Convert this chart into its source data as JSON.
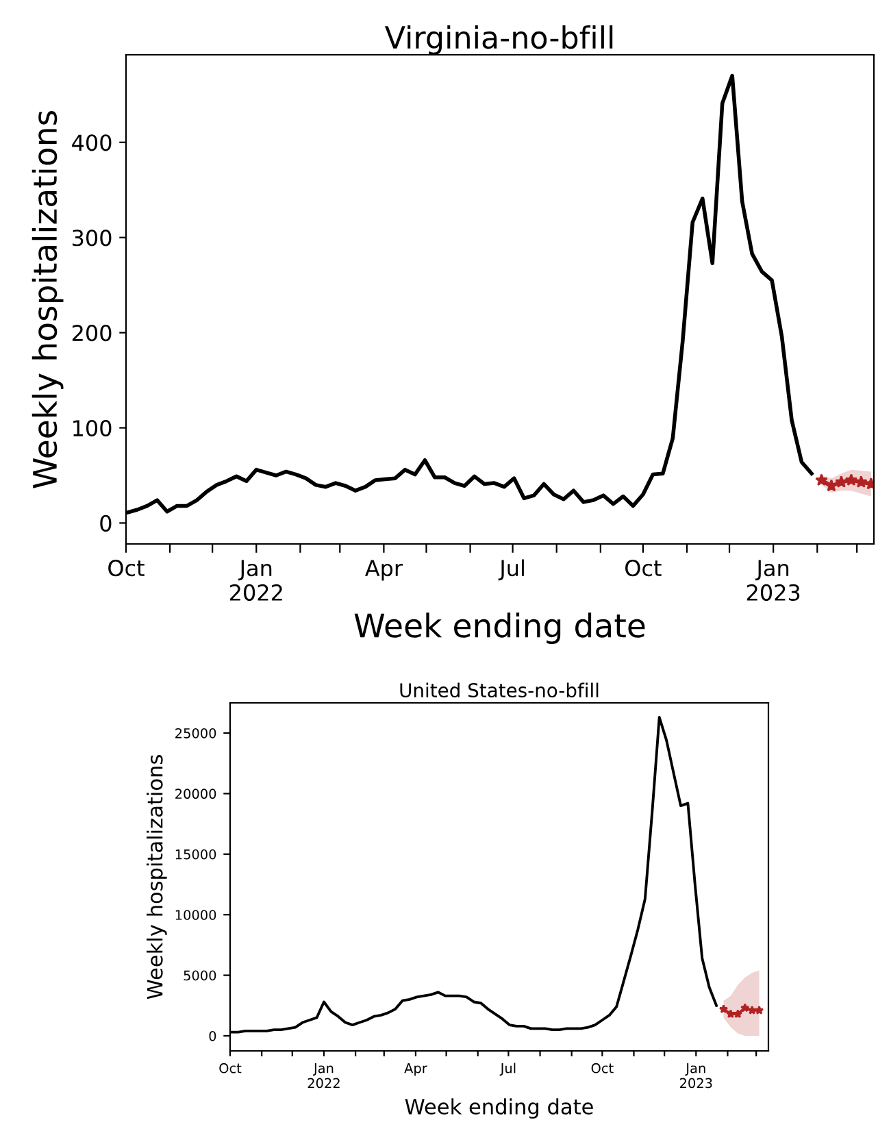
{
  "chart_data": [
    {
      "type": "line",
      "title": "Virginia-no-bfill",
      "xlabel": "Week ending date",
      "ylabel": "Weekly hospitalizations",
      "xlim": [
        "2021-10-01",
        "2023-03-13"
      ],
      "ylim": [
        -22,
        492
      ],
      "yticks": [
        0,
        100,
        200,
        300,
        400
      ],
      "xticks": [
        {
          "value": "2021-10-01",
          "label": "Oct"
        },
        {
          "value": "2021-11-01",
          "label": null
        },
        {
          "value": "2021-12-01",
          "label": null
        },
        {
          "value": "2022-01-01",
          "label": "Jan\n2022"
        },
        {
          "value": "2022-02-01",
          "label": null
        },
        {
          "value": "2022-03-01",
          "label": null
        },
        {
          "value": "2022-04-01",
          "label": "Apr"
        },
        {
          "value": "2022-05-01",
          "label": null
        },
        {
          "value": "2022-06-01",
          "label": null
        },
        {
          "value": "2022-07-01",
          "label": "Jul"
        },
        {
          "value": "2022-08-01",
          "label": null
        },
        {
          "value": "2022-09-01",
          "label": null
        },
        {
          "value": "2022-10-01",
          "label": "Oct"
        },
        {
          "value": "2022-11-01",
          "label": null
        },
        {
          "value": "2022-12-01",
          "label": null
        },
        {
          "value": "2023-01-01",
          "label": "Jan\n2023"
        },
        {
          "value": "2023-02-01",
          "label": null
        },
        {
          "value": "2023-03-01",
          "label": null
        }
      ],
      "grid": false,
      "series": [
        {
          "color": "#000000",
          "marker": "none",
          "x": [
            "2021-10-02",
            "2021-10-09",
            "2021-10-16",
            "2021-10-23",
            "2021-10-30",
            "2021-11-06",
            "2021-11-13",
            "2021-11-20",
            "2021-11-27",
            "2021-12-04",
            "2021-12-11",
            "2021-12-18",
            "2021-12-25",
            "2022-01-01",
            "2022-01-08",
            "2022-01-15",
            "2022-01-22",
            "2022-01-29",
            "2022-02-05",
            "2022-02-12",
            "2022-02-19",
            "2022-02-26",
            "2022-03-05",
            "2022-03-12",
            "2022-03-19",
            "2022-03-26",
            "2022-04-02",
            "2022-04-09",
            "2022-04-16",
            "2022-04-23",
            "2022-04-30",
            "2022-05-07",
            "2022-05-14",
            "2022-05-21",
            "2022-05-28",
            "2022-06-04",
            "2022-06-11",
            "2022-06-18",
            "2022-06-25",
            "2022-07-02",
            "2022-07-09",
            "2022-07-16",
            "2022-07-23",
            "2022-07-30",
            "2022-08-06",
            "2022-08-13",
            "2022-08-20",
            "2022-08-27",
            "2022-09-03",
            "2022-09-10",
            "2022-09-17",
            "2022-09-24",
            "2022-10-01",
            "2022-10-08",
            "2022-10-15",
            "2022-10-22",
            "2022-10-29",
            "2022-11-05",
            "2022-11-12",
            "2022-11-19",
            "2022-11-26",
            "2022-12-03",
            "2022-12-10",
            "2022-12-17",
            "2022-12-24",
            "2022-12-31",
            "2023-01-07",
            "2023-01-14",
            "2023-01-21",
            "2023-01-28"
          ],
          "values": [
            11,
            14,
            18,
            24,
            12,
            18,
            18,
            24,
            33,
            40,
            44,
            49,
            44,
            56,
            53,
            50,
            54,
            51,
            47,
            40,
            38,
            42,
            39,
            34,
            38,
            45,
            46,
            47,
            56,
            51,
            66,
            48,
            48,
            42,
            39,
            49,
            41,
            42,
            38,
            47,
            26,
            29,
            41,
            30,
            25,
            34,
            22,
            24,
            29,
            20,
            28,
            18,
            30,
            51,
            52,
            89,
            191,
            316,
            341,
            273,
            441,
            470,
            338,
            283,
            264,
            255,
            196,
            108,
            64,
            52
          ]
        },
        {
          "color": "#b22222",
          "marker": "star",
          "x": [
            "2023-02-04",
            "2023-02-11",
            "2023-02-18",
            "2023-02-25",
            "2023-03-04",
            "2023-03-11"
          ],
          "values": [
            45,
            39,
            43,
            45,
            43,
            41
          ],
          "lower": [
            40,
            32,
            34,
            34,
            31,
            28
          ],
          "upper": [
            50,
            47,
            52,
            56,
            55,
            54
          ]
        }
      ]
    },
    {
      "type": "line",
      "title": "United States-no-bfill",
      "xlabel": "Week ending date",
      "ylabel": "Weekly hospitalizations",
      "xlim": [
        "2021-10-01",
        "2023-03-13"
      ],
      "ylim": [
        -1246,
        27490
      ],
      "yticks": [
        0,
        5000,
        10000,
        15000,
        20000,
        25000
      ],
      "xticks": [
        {
          "value": "2021-10-01",
          "label": "Oct"
        },
        {
          "value": "2021-11-01",
          "label": null
        },
        {
          "value": "2021-12-01",
          "label": null
        },
        {
          "value": "2022-01-01",
          "label": "Jan\n2022"
        },
        {
          "value": "2022-02-01",
          "label": null
        },
        {
          "value": "2022-03-01",
          "label": null
        },
        {
          "value": "2022-04-01",
          "label": "Apr"
        },
        {
          "value": "2022-05-01",
          "label": null
        },
        {
          "value": "2022-06-01",
          "label": null
        },
        {
          "value": "2022-07-01",
          "label": "Jul"
        },
        {
          "value": "2022-08-01",
          "label": null
        },
        {
          "value": "2022-09-01",
          "label": null
        },
        {
          "value": "2022-10-01",
          "label": "Oct"
        },
        {
          "value": "2022-11-01",
          "label": null
        },
        {
          "value": "2022-12-01",
          "label": null
        },
        {
          "value": "2023-01-01",
          "label": "Jan\n2023"
        },
        {
          "value": "2023-02-01",
          "label": null
        },
        {
          "value": "2023-03-01",
          "label": null
        }
      ],
      "grid": false,
      "series": [
        {
          "color": "#000000",
          "marker": "none",
          "x": [
            "2021-10-02",
            "2021-10-09",
            "2021-10-16",
            "2021-10-23",
            "2021-10-30",
            "2021-11-06",
            "2021-11-13",
            "2021-11-20",
            "2021-11-27",
            "2021-12-04",
            "2021-12-11",
            "2021-12-18",
            "2021-12-25",
            "2022-01-01",
            "2022-01-08",
            "2022-01-15",
            "2022-01-22",
            "2022-01-29",
            "2022-02-05",
            "2022-02-12",
            "2022-02-19",
            "2022-02-26",
            "2022-03-05",
            "2022-03-12",
            "2022-03-19",
            "2022-03-26",
            "2022-04-02",
            "2022-04-09",
            "2022-04-16",
            "2022-04-23",
            "2022-04-30",
            "2022-05-07",
            "2022-05-14",
            "2022-05-21",
            "2022-05-28",
            "2022-06-04",
            "2022-06-11",
            "2022-06-18",
            "2022-06-25",
            "2022-07-02",
            "2022-07-09",
            "2022-07-16",
            "2022-07-23",
            "2022-07-30",
            "2022-08-06",
            "2022-08-13",
            "2022-08-20",
            "2022-08-27",
            "2022-09-03",
            "2022-09-10",
            "2022-09-17",
            "2022-09-24",
            "2022-10-01",
            "2022-10-08",
            "2022-10-15",
            "2022-10-22",
            "2022-10-29",
            "2022-11-05",
            "2022-11-12",
            "2022-11-19",
            "2022-11-26",
            "2022-12-03",
            "2022-12-10",
            "2022-12-17",
            "2022-12-24",
            "2022-12-31",
            "2023-01-07",
            "2023-01-14",
            "2023-01-21"
          ],
          "values": [
            300,
            300,
            400,
            400,
            400,
            400,
            500,
            500,
            600,
            700,
            1100,
            1300,
            1500,
            2800,
            2000,
            1600,
            1100,
            900,
            1100,
            1300,
            1600,
            1700,
            1900,
            2200,
            2900,
            3000,
            3200,
            3300,
            3400,
            3600,
            3300,
            3300,
            3300,
            3200,
            2800,
            2700,
            2200,
            1800,
            1400,
            900,
            800,
            800,
            600,
            600,
            600,
            500,
            500,
            600,
            600,
            600,
            700,
            900,
            1300,
            1700,
            2400,
            4500,
            6600,
            8800,
            11300,
            18500,
            26300,
            24400,
            21700,
            19000,
            19200,
            12500,
            6400,
            4000,
            2500
          ]
        },
        {
          "color": "#b22222",
          "marker": "star",
          "x": [
            "2023-01-28",
            "2023-02-04",
            "2023-02-11",
            "2023-02-18",
            "2023-02-25",
            "2023-03-04"
          ],
          "values": [
            2200,
            1800,
            1800,
            2300,
            2100,
            2100
          ],
          "lower": [
            1500,
            700,
            200,
            0,
            0,
            0
          ],
          "upper": [
            2900,
            3300,
            4200,
            4800,
            5200,
            5400
          ]
        }
      ]
    }
  ]
}
